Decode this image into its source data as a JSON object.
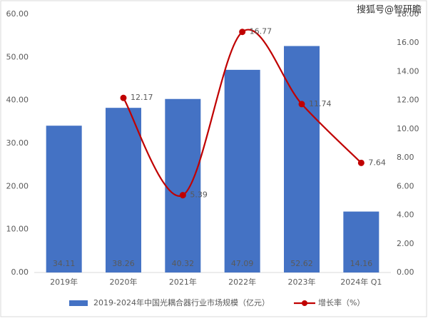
{
  "watermark": "搜狐号@智研瞻",
  "chart_data": {
    "type": "bar",
    "categories": [
      "2019年",
      "2020年",
      "2021年",
      "2022年",
      "2023年",
      "2024年 Q1"
    ],
    "series": [
      {
        "name": "2019-2024年中国光耦合器行业市场规模（亿元）",
        "color": "#4472c4",
        "values": [
          34.11,
          38.26,
          40.32,
          47.09,
          52.62,
          14.16
        ]
      },
      {
        "name": "增长率（%）",
        "color": "#c00000",
        "type": "line",
        "axis": "y2",
        "values": [
          null,
          12.17,
          5.39,
          16.77,
          11.74,
          7.64
        ]
      }
    ],
    "ylim": [
      0,
      60
    ],
    "yticks": [
      {
        "value": 0,
        "label": "0.00"
      },
      {
        "value": 10,
        "label": "10.00"
      },
      {
        "value": 20,
        "label": "20.00"
      },
      {
        "value": 30,
        "label": "30.00"
      },
      {
        "value": 40,
        "label": "40.00"
      },
      {
        "value": 50,
        "label": "50.00"
      },
      {
        "value": 60,
        "label": "60.00"
      }
    ],
    "y2lim": [
      0,
      18
    ],
    "y2ticks": [
      {
        "value": 0,
        "label": "0.00"
      },
      {
        "value": 2,
        "label": "2.00"
      },
      {
        "value": 4,
        "label": "4.00"
      },
      {
        "value": 6,
        "label": "6.00"
      },
      {
        "value": 8,
        "label": "8.00"
      },
      {
        "value": 10,
        "label": "10.00"
      },
      {
        "value": 12,
        "label": "12.00"
      },
      {
        "value": 14,
        "label": "14.00"
      },
      {
        "value": 16,
        "label": "16.00"
      },
      {
        "value": 18,
        "label": "18.00"
      }
    ]
  }
}
